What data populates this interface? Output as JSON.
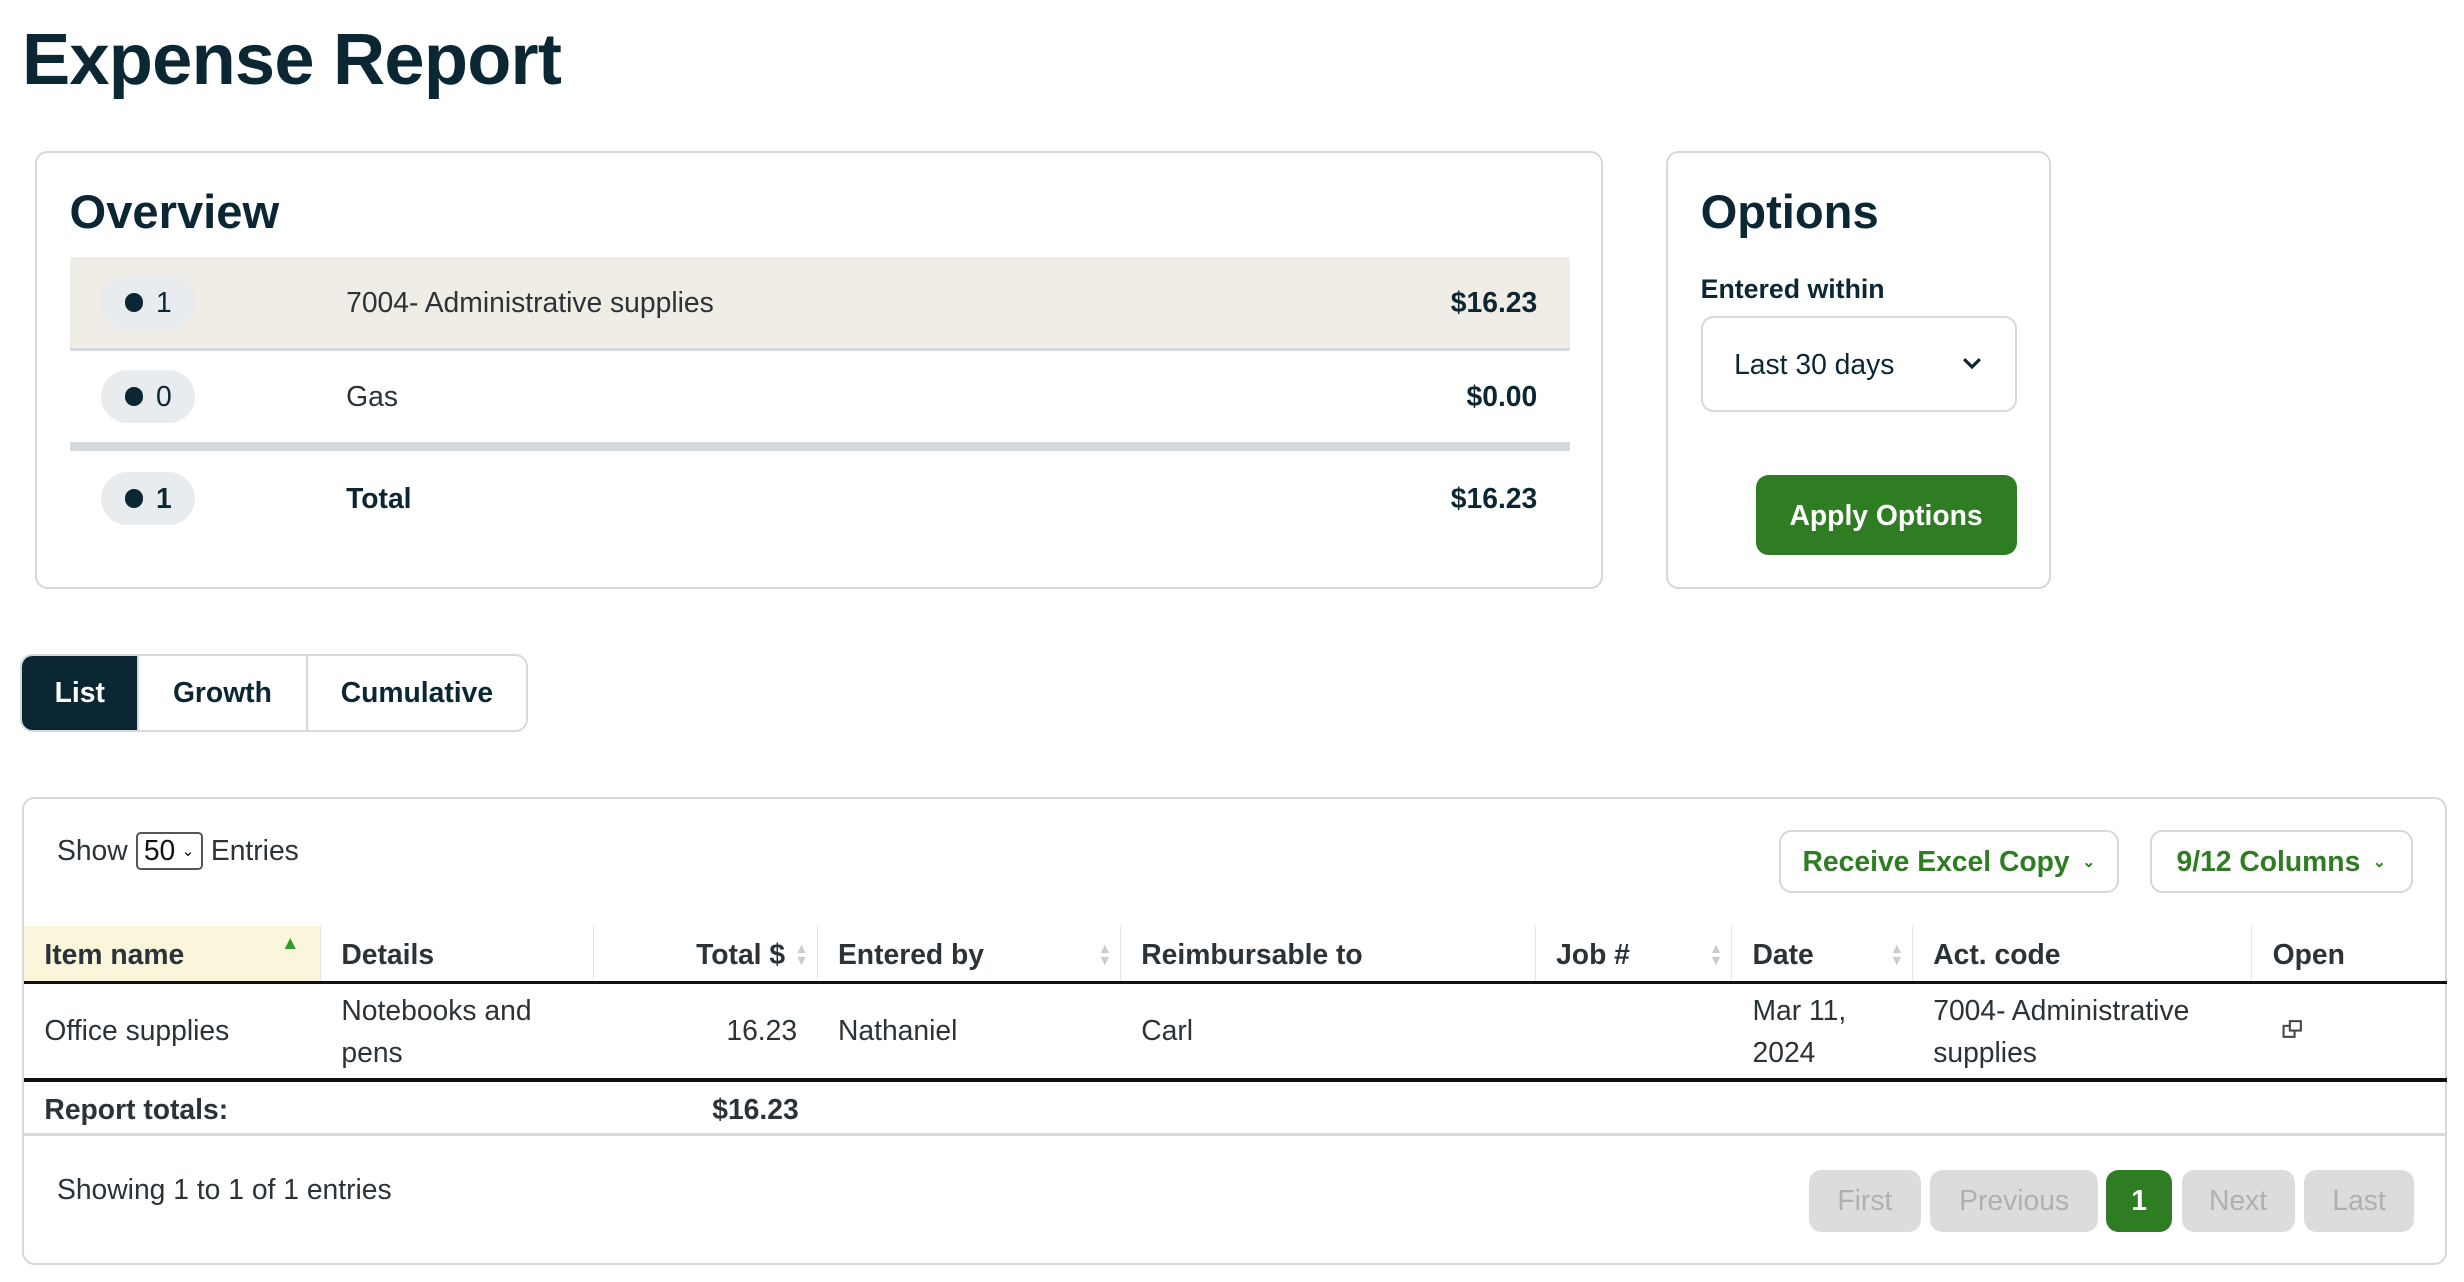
{
  "title": "Expense Report",
  "overview": {
    "heading": "Overview",
    "rows": [
      {
        "count": "1",
        "label": "7004- Administrative supplies",
        "amount": "$16.23"
      },
      {
        "count": "0",
        "label": "Gas",
        "amount": "$0.00"
      }
    ],
    "total": {
      "count": "1",
      "label": "Total",
      "amount": "$16.23"
    }
  },
  "options": {
    "heading": "Options",
    "entered_within_label": "Entered within",
    "entered_within_value": "Last 30 days",
    "apply_label": "Apply Options"
  },
  "tabs": [
    {
      "label": "List",
      "active": true
    },
    {
      "label": "Growth"
    },
    {
      "label": "Cumulative"
    }
  ],
  "table": {
    "show_label": "Show",
    "entries_value": "50",
    "entries_label": "Entries",
    "excel_label": "Receive Excel Copy",
    "columns_label": "9/12 Columns",
    "headers": [
      "Item name",
      "Details",
      "Total $",
      "Entered by",
      "Reimbursable to",
      "Job #",
      "Date",
      "Act. code",
      "Open"
    ],
    "rows": [
      {
        "item": "Office supplies",
        "details": "Notebooks and pens",
        "total": "16.23",
        "entered_by": "Nathaniel",
        "reimbursable_to": "Carl",
        "job": "",
        "date": "Mar 11, 2024",
        "act_code": "7004- Administrative supplies",
        "open_icon": "external-link-icon"
      }
    ],
    "totals_label": "Report totals:",
    "totals_amount": "$16.23",
    "info": "Showing 1 to 1 of 1 entries",
    "pagination": {
      "first": "First",
      "previous": "Previous",
      "current": "1",
      "next": "Next",
      "last": "Last"
    }
  },
  "colors": {
    "primary": "#0b2733",
    "accent_green": "#2e7d23",
    "highlight_row": "#f0ede6",
    "sorted_column": "#faf6dc"
  }
}
